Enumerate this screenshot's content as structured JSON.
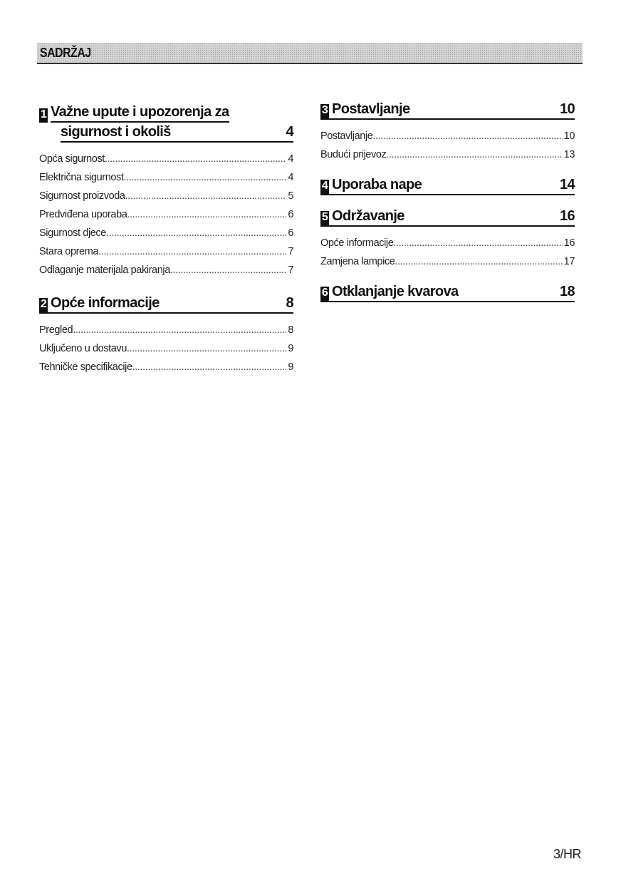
{
  "header": {
    "title": "SADRŽAJ"
  },
  "left": [
    {
      "num": "1",
      "title_line1": "Važne upute i upozorenja za",
      "title_line2": "sigurnost i okoliš",
      "page": "4",
      "entries": [
        {
          "label": "Opća sigurnost",
          "page": "4"
        },
        {
          "label": "Električna sigurnost",
          "page": "4"
        },
        {
          "label": "Sigurnost proizvoda",
          "page": "5"
        },
        {
          "label": "Predviđena uporaba",
          "page": "6"
        },
        {
          "label": "Sigurnost djece",
          "page": "6"
        },
        {
          "label": "Stara oprema",
          "page": "7"
        },
        {
          "label": "Odlaganje materijala pakiranja",
          "page": "7"
        }
      ]
    },
    {
      "num": "2",
      "title": "Opće informacije",
      "page": "8",
      "entries": [
        {
          "label": "Pregled",
          "page": "8"
        },
        {
          "label": "Uključeno u dostavu",
          "page": "9"
        },
        {
          "label": "Tehničke specifikacije",
          "page": "9"
        }
      ]
    }
  ],
  "right": [
    {
      "num": "3",
      "title": "Postavljanje",
      "page": "10",
      "entries": [
        {
          "label": "Postavljanje",
          "page": "10"
        },
        {
          "label": "Budući prijevoz",
          "page": "13"
        }
      ]
    },
    {
      "num": "4",
      "title": "Uporaba nape",
      "page": "14",
      "entries": []
    },
    {
      "num": "5",
      "title": "Održavanje",
      "page": "16",
      "entries": [
        {
          "label": "Opće informacije",
          "page": "16"
        },
        {
          "label": "Zamjena lampice",
          "page": "17"
        }
      ]
    },
    {
      "num": "6",
      "title": "Otklanjanje kvarova",
      "page": "18",
      "entries": []
    }
  ],
  "footer": {
    "page_label": "3/HR"
  }
}
